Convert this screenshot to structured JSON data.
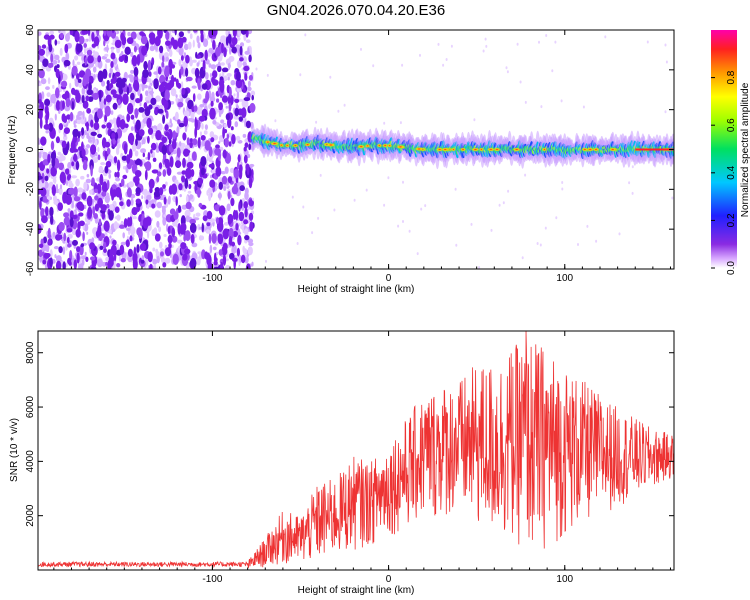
{
  "title": "GN04.2026.070.04.20.E36",
  "chart_data": [
    {
      "type": "heatmap",
      "xlabel": "Height of straight line (km)",
      "ylabel": "Frequency (Hz)",
      "xlim": [
        -199,
        162
      ],
      "ylim": [
        -60,
        60
      ],
      "xticks": [
        -100,
        0,
        100
      ],
      "yticks": [
        -60,
        -40,
        -20,
        0,
        20,
        40,
        60
      ],
      "noise_region_x": [
        -199,
        -77
      ],
      "signal_onset_x": -77,
      "signal_trace": [
        {
          "x": -77,
          "f": 6
        },
        {
          "x": -70,
          "f": 4
        },
        {
          "x": -60,
          "f": 2
        },
        {
          "x": -50,
          "f": 2
        },
        {
          "x": -40,
          "f": 3
        },
        {
          "x": -30,
          "f": 2
        },
        {
          "x": -20,
          "f": 1
        },
        {
          "x": -10,
          "f": 2
        },
        {
          "x": 0,
          "f": 2
        },
        {
          "x": 10,
          "f": 1
        },
        {
          "x": 20,
          "f": 0
        },
        {
          "x": 40,
          "f": 0
        },
        {
          "x": 60,
          "f": 0
        },
        {
          "x": 80,
          "f": 0
        },
        {
          "x": 100,
          "f": 0
        },
        {
          "x": 120,
          "f": 0
        },
        {
          "x": 140,
          "f": 0
        },
        {
          "x": 162,
          "f": 0
        }
      ],
      "colorbar": {
        "label": "Normalized spectral amplitude",
        "range": [
          0,
          1
        ],
        "ticks": [
          0.0,
          0.2,
          0.4,
          0.6,
          0.8
        ],
        "tick_labels": [
          "0.0",
          "0.2",
          "0.4",
          "0.6",
          "0.8"
        ]
      }
    },
    {
      "type": "line",
      "xlabel": "Height of straight line (km)",
      "ylabel": "SNR (10 * v/v)",
      "xlim": [
        -199,
        162
      ],
      "ylim": [
        0,
        8800
      ],
      "xticks": [
        -100,
        0,
        100
      ],
      "yticks": [
        2000,
        4000,
        6000,
        8000
      ],
      "color": "#ee3333",
      "envelope": [
        {
          "x": -199,
          "lo": 0,
          "hi": 320
        },
        {
          "x": -80,
          "lo": 0,
          "hi": 320
        },
        {
          "x": -70,
          "lo": 100,
          "hi": 1200
        },
        {
          "x": -60,
          "lo": 200,
          "hi": 2200
        },
        {
          "x": -50,
          "lo": 200,
          "hi": 2000
        },
        {
          "x": -40,
          "lo": 300,
          "hi": 3200
        },
        {
          "x": -30,
          "lo": 500,
          "hi": 3400
        },
        {
          "x": -20,
          "lo": 700,
          "hi": 4200
        },
        {
          "x": -10,
          "lo": 900,
          "hi": 4000
        },
        {
          "x": 0,
          "lo": 1200,
          "hi": 4800
        },
        {
          "x": 10,
          "lo": 1500,
          "hi": 5600
        },
        {
          "x": 20,
          "lo": 1800,
          "hi": 6500
        },
        {
          "x": 30,
          "lo": 1900,
          "hi": 6900
        },
        {
          "x": 40,
          "lo": 2000,
          "hi": 7000
        },
        {
          "x": 50,
          "lo": 1500,
          "hi": 7600
        },
        {
          "x": 60,
          "lo": 1200,
          "hi": 7700
        },
        {
          "x": 70,
          "lo": 1000,
          "hi": 8200
        },
        {
          "x": 80,
          "lo": 600,
          "hi": 8600
        },
        {
          "x": 90,
          "lo": 700,
          "hi": 8200
        },
        {
          "x": 100,
          "lo": 1200,
          "hi": 7500
        },
        {
          "x": 110,
          "lo": 1600,
          "hi": 7000
        },
        {
          "x": 120,
          "lo": 2000,
          "hi": 6500
        },
        {
          "x": 130,
          "lo": 2300,
          "hi": 6000
        },
        {
          "x": 140,
          "lo": 2700,
          "hi": 5600
        },
        {
          "x": 150,
          "lo": 3000,
          "hi": 5200
        },
        {
          "x": 162,
          "lo": 3400,
          "hi": 5000
        }
      ],
      "peak": {
        "x": 78,
        "y": 8800
      }
    }
  ]
}
